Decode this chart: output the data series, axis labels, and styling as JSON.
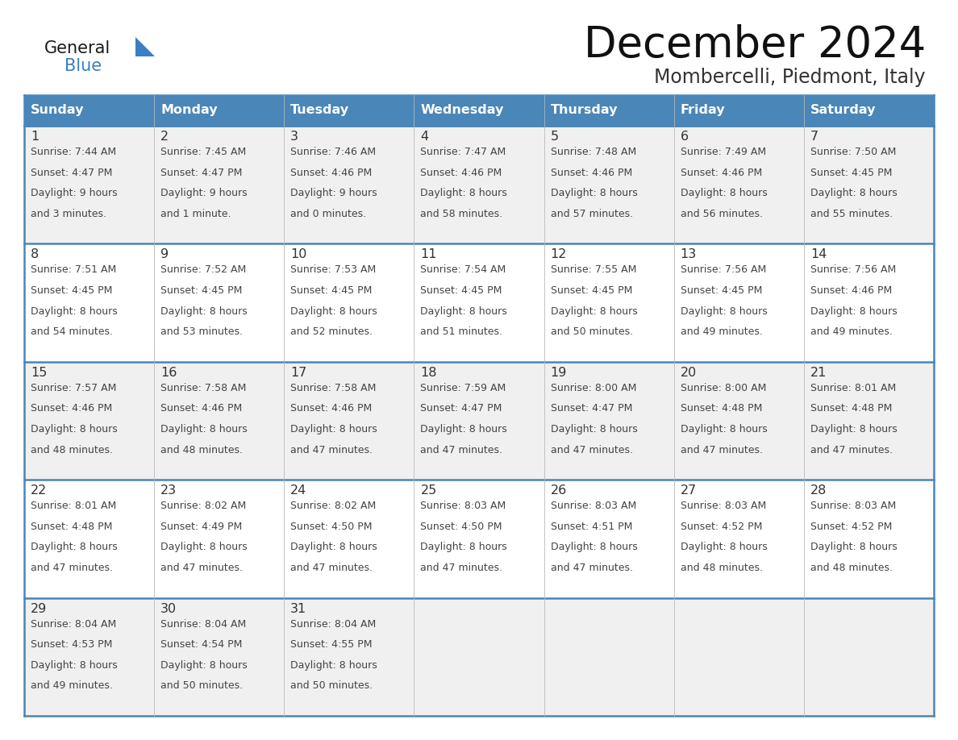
{
  "title": "December 2024",
  "subtitle": "Mombercelli, Piedmont, Italy",
  "header_bg_color": "#4a86b8",
  "header_text_color": "#ffffff",
  "day_headers": [
    "Sunday",
    "Monday",
    "Tuesday",
    "Wednesday",
    "Thursday",
    "Friday",
    "Saturday"
  ],
  "row_bg_even": "#f0f0f0",
  "row_bg_odd": "#ffffff",
  "cell_border_color": "#4a86b8",
  "cell_border_light": "#c0c0c0",
  "date_text_color": "#333333",
  "info_text_color": "#444444",
  "logo_general_color": "#1a1a1a",
  "logo_blue_color": "#3a7fc1",
  "days": [
    {
      "date": 1,
      "col": 0,
      "row": 0,
      "sunrise": "7:44 AM",
      "sunset": "4:47 PM",
      "daylight_h": "9 hours",
      "daylight_m": "and 3 minutes."
    },
    {
      "date": 2,
      "col": 1,
      "row": 0,
      "sunrise": "7:45 AM",
      "sunset": "4:47 PM",
      "daylight_h": "9 hours",
      "daylight_m": "and 1 minute."
    },
    {
      "date": 3,
      "col": 2,
      "row": 0,
      "sunrise": "7:46 AM",
      "sunset": "4:46 PM",
      "daylight_h": "9 hours",
      "daylight_m": "and 0 minutes."
    },
    {
      "date": 4,
      "col": 3,
      "row": 0,
      "sunrise": "7:47 AM",
      "sunset": "4:46 PM",
      "daylight_h": "8 hours",
      "daylight_m": "and 58 minutes."
    },
    {
      "date": 5,
      "col": 4,
      "row": 0,
      "sunrise": "7:48 AM",
      "sunset": "4:46 PM",
      "daylight_h": "8 hours",
      "daylight_m": "and 57 minutes."
    },
    {
      "date": 6,
      "col": 5,
      "row": 0,
      "sunrise": "7:49 AM",
      "sunset": "4:46 PM",
      "daylight_h": "8 hours",
      "daylight_m": "and 56 minutes."
    },
    {
      "date": 7,
      "col": 6,
      "row": 0,
      "sunrise": "7:50 AM",
      "sunset": "4:45 PM",
      "daylight_h": "8 hours",
      "daylight_m": "and 55 minutes."
    },
    {
      "date": 8,
      "col": 0,
      "row": 1,
      "sunrise": "7:51 AM",
      "sunset": "4:45 PM",
      "daylight_h": "8 hours",
      "daylight_m": "and 54 minutes."
    },
    {
      "date": 9,
      "col": 1,
      "row": 1,
      "sunrise": "7:52 AM",
      "sunset": "4:45 PM",
      "daylight_h": "8 hours",
      "daylight_m": "and 53 minutes."
    },
    {
      "date": 10,
      "col": 2,
      "row": 1,
      "sunrise": "7:53 AM",
      "sunset": "4:45 PM",
      "daylight_h": "8 hours",
      "daylight_m": "and 52 minutes."
    },
    {
      "date": 11,
      "col": 3,
      "row": 1,
      "sunrise": "7:54 AM",
      "sunset": "4:45 PM",
      "daylight_h": "8 hours",
      "daylight_m": "and 51 minutes."
    },
    {
      "date": 12,
      "col": 4,
      "row": 1,
      "sunrise": "7:55 AM",
      "sunset": "4:45 PM",
      "daylight_h": "8 hours",
      "daylight_m": "and 50 minutes."
    },
    {
      "date": 13,
      "col": 5,
      "row": 1,
      "sunrise": "7:56 AM",
      "sunset": "4:45 PM",
      "daylight_h": "8 hours",
      "daylight_m": "and 49 minutes."
    },
    {
      "date": 14,
      "col": 6,
      "row": 1,
      "sunrise": "7:56 AM",
      "sunset": "4:46 PM",
      "daylight_h": "8 hours",
      "daylight_m": "and 49 minutes."
    },
    {
      "date": 15,
      "col": 0,
      "row": 2,
      "sunrise": "7:57 AM",
      "sunset": "4:46 PM",
      "daylight_h": "8 hours",
      "daylight_m": "and 48 minutes."
    },
    {
      "date": 16,
      "col": 1,
      "row": 2,
      "sunrise": "7:58 AM",
      "sunset": "4:46 PM",
      "daylight_h": "8 hours",
      "daylight_m": "and 48 minutes."
    },
    {
      "date": 17,
      "col": 2,
      "row": 2,
      "sunrise": "7:58 AM",
      "sunset": "4:46 PM",
      "daylight_h": "8 hours",
      "daylight_m": "and 47 minutes."
    },
    {
      "date": 18,
      "col": 3,
      "row": 2,
      "sunrise": "7:59 AM",
      "sunset": "4:47 PM",
      "daylight_h": "8 hours",
      "daylight_m": "and 47 minutes."
    },
    {
      "date": 19,
      "col": 4,
      "row": 2,
      "sunrise": "8:00 AM",
      "sunset": "4:47 PM",
      "daylight_h": "8 hours",
      "daylight_m": "and 47 minutes."
    },
    {
      "date": 20,
      "col": 5,
      "row": 2,
      "sunrise": "8:00 AM",
      "sunset": "4:48 PM",
      "daylight_h": "8 hours",
      "daylight_m": "and 47 minutes."
    },
    {
      "date": 21,
      "col": 6,
      "row": 2,
      "sunrise": "8:01 AM",
      "sunset": "4:48 PM",
      "daylight_h": "8 hours",
      "daylight_m": "and 47 minutes."
    },
    {
      "date": 22,
      "col": 0,
      "row": 3,
      "sunrise": "8:01 AM",
      "sunset": "4:48 PM",
      "daylight_h": "8 hours",
      "daylight_m": "and 47 minutes."
    },
    {
      "date": 23,
      "col": 1,
      "row": 3,
      "sunrise": "8:02 AM",
      "sunset": "4:49 PM",
      "daylight_h": "8 hours",
      "daylight_m": "and 47 minutes."
    },
    {
      "date": 24,
      "col": 2,
      "row": 3,
      "sunrise": "8:02 AM",
      "sunset": "4:50 PM",
      "daylight_h": "8 hours",
      "daylight_m": "and 47 minutes."
    },
    {
      "date": 25,
      "col": 3,
      "row": 3,
      "sunrise": "8:03 AM",
      "sunset": "4:50 PM",
      "daylight_h": "8 hours",
      "daylight_m": "and 47 minutes."
    },
    {
      "date": 26,
      "col": 4,
      "row": 3,
      "sunrise": "8:03 AM",
      "sunset": "4:51 PM",
      "daylight_h": "8 hours",
      "daylight_m": "and 47 minutes."
    },
    {
      "date": 27,
      "col": 5,
      "row": 3,
      "sunrise": "8:03 AM",
      "sunset": "4:52 PM",
      "daylight_h": "8 hours",
      "daylight_m": "and 48 minutes."
    },
    {
      "date": 28,
      "col": 6,
      "row": 3,
      "sunrise": "8:03 AM",
      "sunset": "4:52 PM",
      "daylight_h": "8 hours",
      "daylight_m": "and 48 minutes."
    },
    {
      "date": 29,
      "col": 0,
      "row": 4,
      "sunrise": "8:04 AM",
      "sunset": "4:53 PM",
      "daylight_h": "8 hours",
      "daylight_m": "and 49 minutes."
    },
    {
      "date": 30,
      "col": 1,
      "row": 4,
      "sunrise": "8:04 AM",
      "sunset": "4:54 PM",
      "daylight_h": "8 hours",
      "daylight_m": "and 50 minutes."
    },
    {
      "date": 31,
      "col": 2,
      "row": 4,
      "sunrise": "8:04 AM",
      "sunset": "4:55 PM",
      "daylight_h": "8 hours",
      "daylight_m": "and 50 minutes."
    }
  ]
}
